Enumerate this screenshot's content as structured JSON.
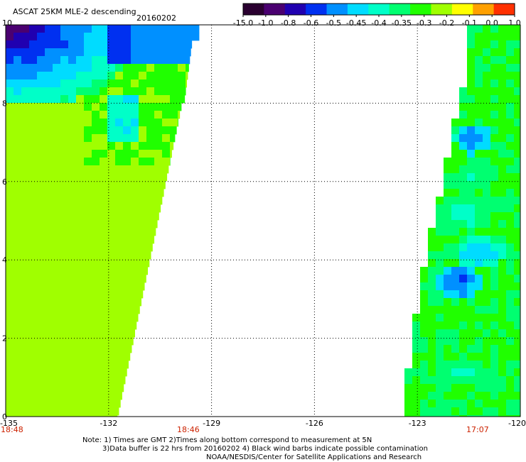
{
  "title": "ASCAT 25KM MLE-2 descending",
  "date": "20160202",
  "colorbar": {
    "colors": [
      "#2a0030",
      "#4a0070",
      "#2000b0",
      "#0030f0",
      "#0090ff",
      "#00dcff",
      "#00ffc8",
      "#00ff70",
      "#20ff00",
      "#a0ff00",
      "#ffff00",
      "#ffa000",
      "#ff3000"
    ],
    "labels": [
      "-15.0",
      "-1.0",
      "-0.8",
      "-0.6",
      "-0.5",
      "-0.45",
      "-0.4",
      "-0.35",
      "-0.3",
      "-0.2",
      "-0.1",
      "0.0",
      "1.0"
    ]
  },
  "map": {
    "lon_range": [
      -135,
      -120
    ],
    "lat_range": [
      0,
      10
    ],
    "x_ticks": [
      "-135",
      "-132",
      "-129",
      "-126",
      "-123",
      "-120"
    ],
    "y_ticks": [
      "0",
      "2",
      "4",
      "6",
      "8",
      "10"
    ]
  },
  "times": {
    "t1": "18:48",
    "t2": "18:46",
    "t3": "17:07"
  },
  "notes": {
    "line1": "Note: 1) Times are GMT  2)Times along bottom correspond to measurement at 5N",
    "line2": "3)Data buffer is 22 hrs from 20160202  4) Black wind barbs indicate possible contamination",
    "line3": "NOAA/NESDIS/Center for Satellite Applications and Research"
  }
}
